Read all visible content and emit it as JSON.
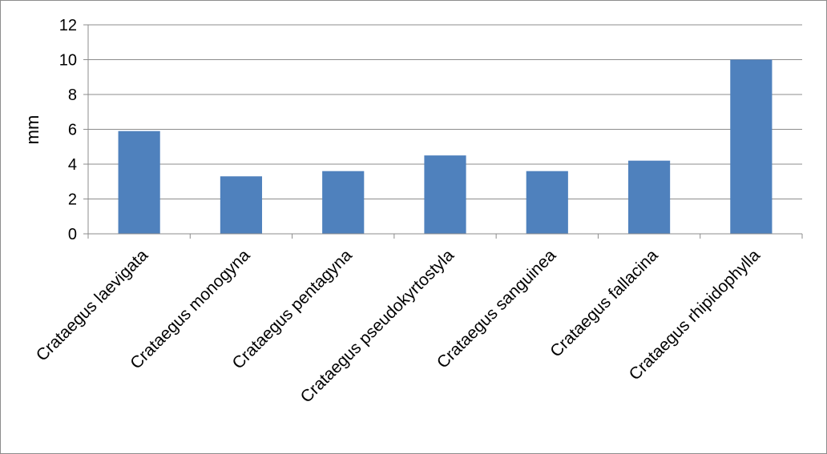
{
  "chart_data": {
    "type": "bar",
    "title": "",
    "xlabel": "",
    "ylabel": "mm",
    "ylim": [
      0,
      12
    ],
    "yticks": [
      0,
      2,
      4,
      6,
      8,
      10,
      12
    ],
    "grid": true,
    "legend": "none",
    "bar_color": "#4f81bd",
    "categories": [
      "Crataegus laevigata",
      "Crataegus monogyna",
      "Crataegus pentagyna",
      "Crataegus pseudokyrtostyla",
      "Crataegus sanguinea",
      "Crataegus fallacina",
      "Crataegus rhipidophylla"
    ],
    "values": [
      5.9,
      3.3,
      3.6,
      4.5,
      3.6,
      4.2,
      10.0
    ]
  }
}
